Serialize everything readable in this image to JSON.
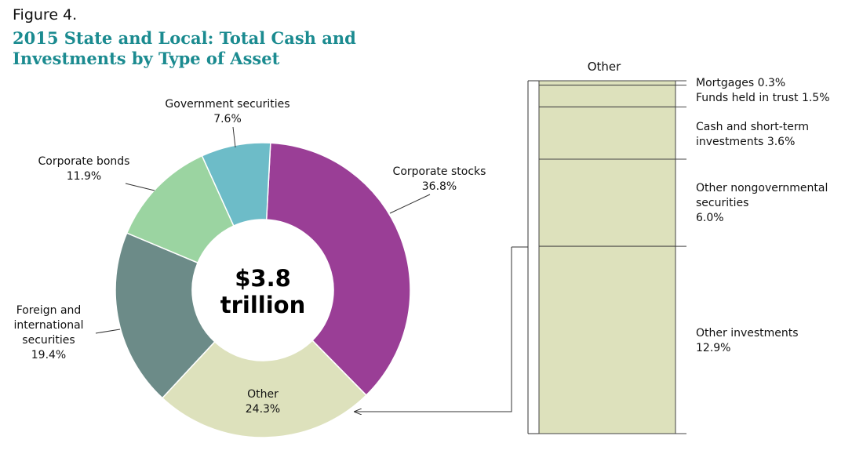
{
  "figure_label": "Figure 4.",
  "title": "2015 State and Local: Total Cash and Investments by Type of Asset",
  "chart_data": [
    {
      "type": "pie",
      "categories": [
        "Corporate stocks",
        "Other",
        "Foreign and international securities",
        "Corporate bonds",
        "Government securities"
      ],
      "values": [
        36.8,
        24.3,
        19.4,
        11.9,
        7.6
      ],
      "value_labels": [
        "36.8%",
        "24.3%",
        "19.4%",
        "11.9%",
        "7.6%"
      ],
      "colors": [
        "#9a3e96",
        "#dde1bc",
        "#6c8b88",
        "#9bd4a1",
        "#6dbcc8"
      ],
      "center_label": "$3.8 trillion"
    },
    {
      "type": "stacked_bar",
      "title": "Other",
      "categories": [
        "Mortgages",
        "Funds held in trust",
        "Cash and short-term investments",
        "Other nongovernmental securities",
        "Other investments"
      ],
      "values": [
        0.3,
        1.5,
        3.6,
        6.0,
        12.9
      ],
      "value_labels": [
        "0.3%",
        "1.5%",
        "3.6%",
        "6.0%",
        "12.9%"
      ],
      "color": "#dde1bc"
    }
  ]
}
